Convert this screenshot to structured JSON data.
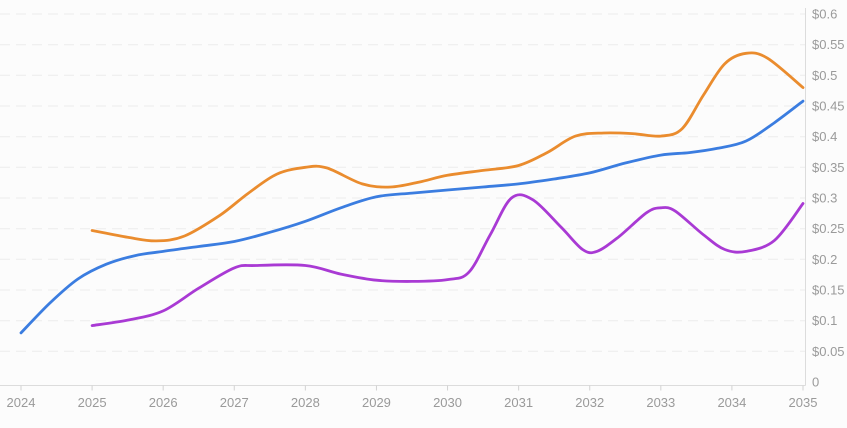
{
  "chart_data": {
    "type": "line",
    "title": "",
    "subtitle": "",
    "legend": {
      "visible": false
    },
    "grid": {
      "horizontal": true,
      "vertical": false,
      "style": "dashed"
    },
    "x_axis": {
      "label": "",
      "min": 2024,
      "max": 2035,
      "tick_labels": [
        "2024",
        "2025",
        "2026",
        "2027",
        "2028",
        "2029",
        "2030",
        "2031",
        "2032",
        "2033",
        "2034",
        "2035"
      ],
      "tick_values": [
        2024,
        2025,
        2026,
        2027,
        2028,
        2029,
        2030,
        2031,
        2032,
        2033,
        2034,
        2035
      ]
    },
    "y_axis": {
      "label": "",
      "position": "right",
      "min": 0,
      "max": 0.6,
      "unit": "USD",
      "tick_labels": [
        "$0.6",
        "$0.55",
        "$0.5",
        "$0.45",
        "$0.4",
        "$0.35",
        "$0.3",
        "$0.25",
        "$0.2",
        "$0.15",
        "$0.1",
        "$0.05",
        "0"
      ],
      "tick_values": [
        0.6,
        0.55,
        0.5,
        0.45,
        0.4,
        0.35,
        0.3,
        0.25,
        0.2,
        0.15,
        0.1,
        0.05,
        0
      ]
    },
    "colors": {
      "background": "#fcfcfc",
      "grid": "#ececec",
      "axis": "#dcdcdc",
      "tick": "#d2d2d2",
      "tick_text": "#9a9a9a"
    },
    "series": [
      {
        "name": "blue-forecast-line",
        "color": "#3b7de0",
        "points": [
          [
            2024.0,
            0.08
          ],
          [
            2024.4,
            0.128
          ],
          [
            2024.8,
            0.168
          ],
          [
            2025.2,
            0.192
          ],
          [
            2025.6,
            0.206
          ],
          [
            2026.0,
            0.213
          ],
          [
            2026.5,
            0.221
          ],
          [
            2027.0,
            0.229
          ],
          [
            2027.5,
            0.244
          ],
          [
            2028.0,
            0.262
          ],
          [
            2028.5,
            0.284
          ],
          [
            2029.0,
            0.302
          ],
          [
            2029.5,
            0.308
          ],
          [
            2030.0,
            0.313
          ],
          [
            2030.5,
            0.318
          ],
          [
            2031.0,
            0.323
          ],
          [
            2031.5,
            0.331
          ],
          [
            2032.0,
            0.341
          ],
          [
            2032.5,
            0.357
          ],
          [
            2033.0,
            0.37
          ],
          [
            2033.4,
            0.374
          ],
          [
            2033.8,
            0.381
          ],
          [
            2034.2,
            0.393
          ],
          [
            2034.6,
            0.423
          ],
          [
            2035.0,
            0.458
          ]
        ]
      },
      {
        "name": "orange-forecast-line",
        "color": "#ea8c2e",
        "points": [
          [
            2025.0,
            0.247
          ],
          [
            2025.5,
            0.236
          ],
          [
            2025.9,
            0.23
          ],
          [
            2026.3,
            0.238
          ],
          [
            2026.8,
            0.272
          ],
          [
            2027.2,
            0.308
          ],
          [
            2027.6,
            0.339
          ],
          [
            2028.0,
            0.35
          ],
          [
            2028.3,
            0.349
          ],
          [
            2028.8,
            0.323
          ],
          [
            2029.2,
            0.318
          ],
          [
            2029.6,
            0.326
          ],
          [
            2030.0,
            0.337
          ],
          [
            2030.5,
            0.345
          ],
          [
            2031.0,
            0.353
          ],
          [
            2031.4,
            0.374
          ],
          [
            2031.8,
            0.401
          ],
          [
            2032.2,
            0.406
          ],
          [
            2032.6,
            0.405
          ],
          [
            2033.0,
            0.401
          ],
          [
            2033.3,
            0.413
          ],
          [
            2033.6,
            0.468
          ],
          [
            2033.9,
            0.519
          ],
          [
            2034.2,
            0.536
          ],
          [
            2034.5,
            0.528
          ],
          [
            2035.0,
            0.48
          ]
        ]
      },
      {
        "name": "purple-forecast-line",
        "color": "#a93ad4",
        "points": [
          [
            2025.0,
            0.092
          ],
          [
            2025.5,
            0.101
          ],
          [
            2026.0,
            0.116
          ],
          [
            2026.5,
            0.153
          ],
          [
            2027.0,
            0.186
          ],
          [
            2027.3,
            0.19
          ],
          [
            2028.0,
            0.19
          ],
          [
            2028.5,
            0.176
          ],
          [
            2029.0,
            0.166
          ],
          [
            2029.5,
            0.164
          ],
          [
            2030.0,
            0.167
          ],
          [
            2030.3,
            0.179
          ],
          [
            2030.6,
            0.24
          ],
          [
            2030.9,
            0.3
          ],
          [
            2031.2,
            0.297
          ],
          [
            2031.6,
            0.252
          ],
          [
            2031.9,
            0.216
          ],
          [
            2032.1,
            0.213
          ],
          [
            2032.4,
            0.236
          ],
          [
            2032.8,
            0.276
          ],
          [
            2033.0,
            0.284
          ],
          [
            2033.2,
            0.279
          ],
          [
            2033.6,
            0.24
          ],
          [
            2033.9,
            0.216
          ],
          [
            2034.2,
            0.213
          ],
          [
            2034.6,
            0.231
          ],
          [
            2035.0,
            0.291
          ]
        ]
      }
    ]
  }
}
